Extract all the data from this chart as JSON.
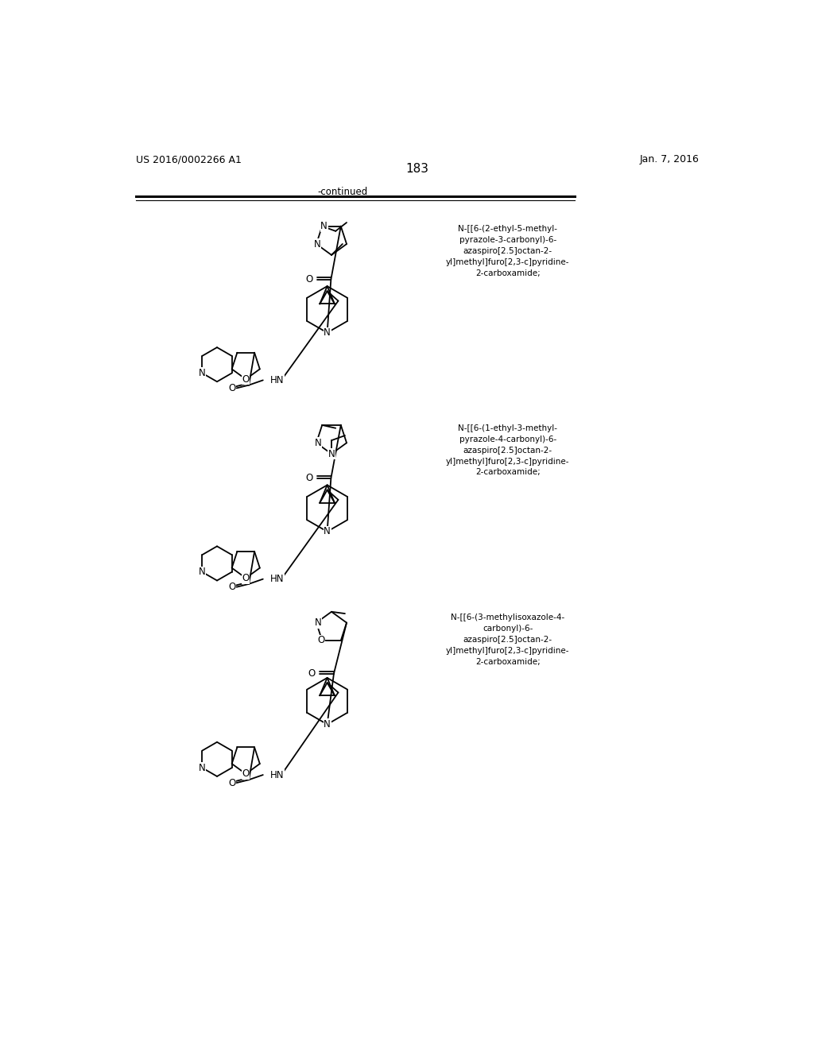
{
  "page_number": "183",
  "left_header": "US 2016/0002266 A1",
  "right_header": "Jan. 7, 2016",
  "continued_label": "-continued",
  "background_color": "#ffffff",
  "name1": "N-[[6-(2-ethyl-5-methyl-\npyrazole-3-carbonyl)-6-\nazaspiro[2.5]octan-2-\nyl]methyl]furo[2,3-c]pyridine-\n2-carboxamide;",
  "name2": "N-[[6-(1-ethyl-3-methyl-\npyrazole-4-carbonyl)-6-\nazaspiro[2.5]octan-2-\nyl]methyl]furo[2,3-c]pyridine-\n2-carboxamide;",
  "name3": "N-[[6-(3-methylisoxazole-4-\ncarbonyl)-6-\nazaspiro[2.5]octan-2-\nyl]methyl]furo[2,3-c]pyridine-\n2-carboxamide;"
}
